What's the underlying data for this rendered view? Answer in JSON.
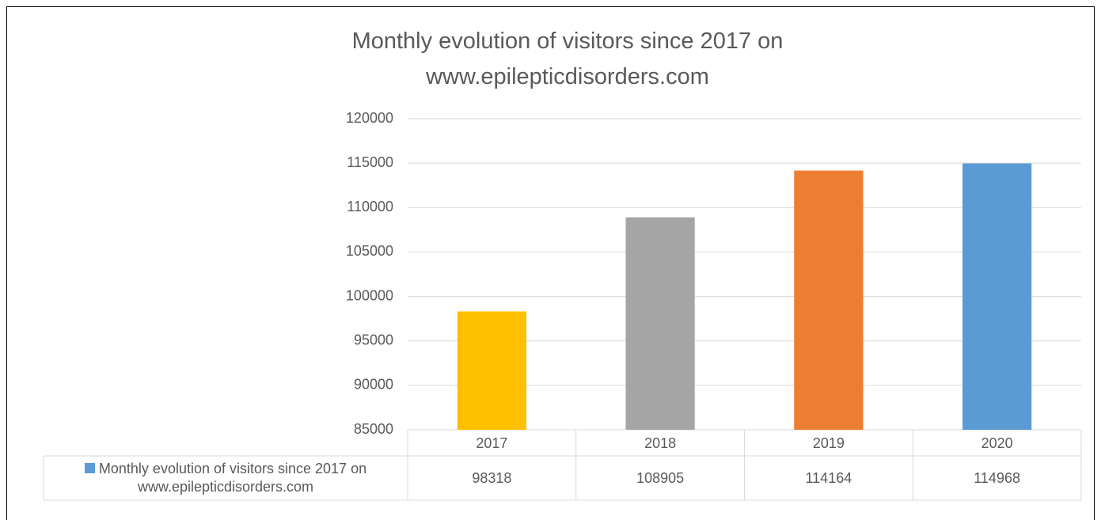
{
  "chart_data": {
    "type": "bar",
    "title": "Monthly evolution of visitors since 2017 on www.epilepticdisorders.com",
    "categories": [
      "2017",
      "2018",
      "2019",
      "2020"
    ],
    "series": [
      {
        "name": "Monthly evolution of visitors since 2017 on www.epilepticdisorders.com",
        "color": "#5b9bd5",
        "values": [
          98318,
          108905,
          114164,
          114968
        ],
        "colors": [
          "#ffc000",
          "#a5a5a5",
          "#ed7d31",
          "#5b9bd5"
        ]
      }
    ],
    "ylim": [
      85000,
      120000
    ],
    "yticks": [
      85000,
      90000,
      95000,
      100000,
      105000,
      110000,
      115000,
      120000
    ],
    "grid": true,
    "data_table": true
  }
}
